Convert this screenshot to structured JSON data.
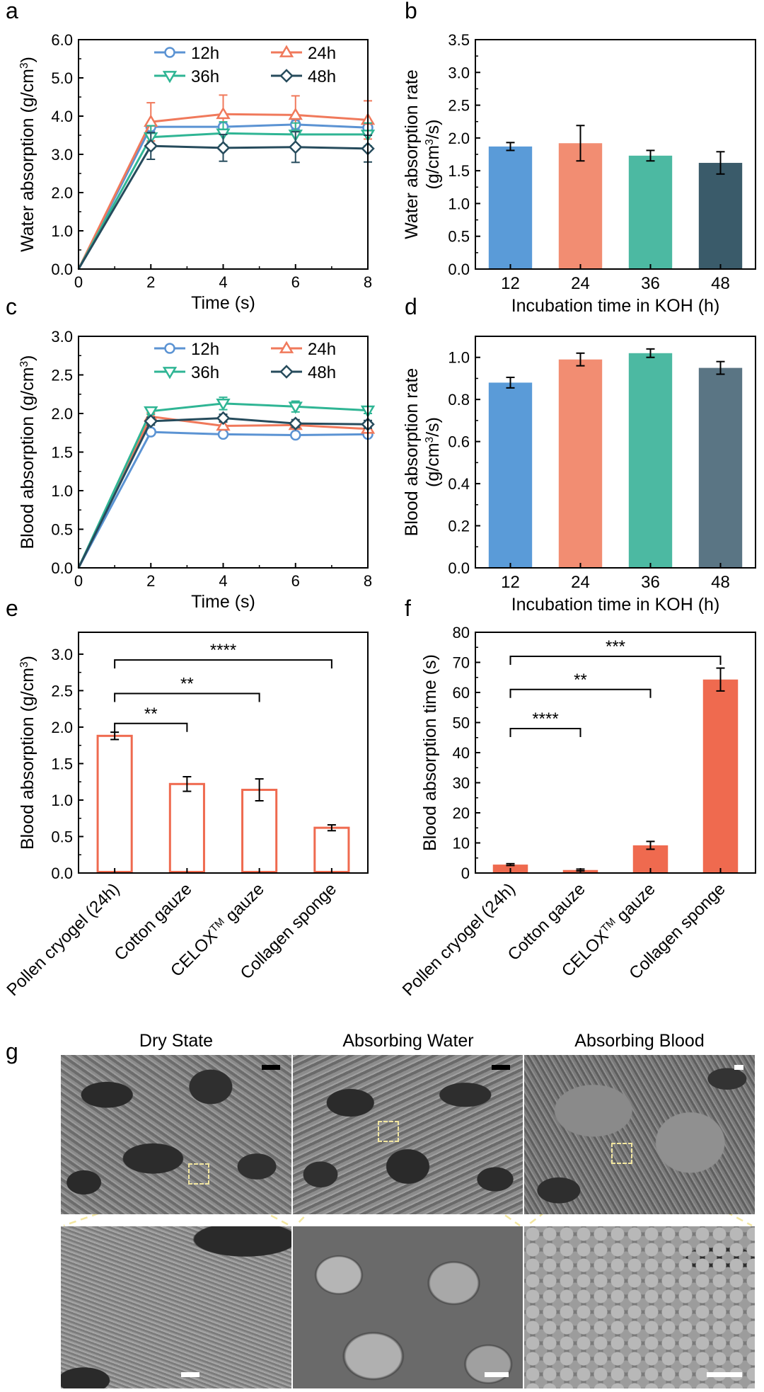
{
  "colors": {
    "c12": "#5b93d3",
    "c24": "#f0795b",
    "c36": "#2fb594",
    "c48": "#264b5c",
    "bar12": "#5a9bd8",
    "bar24": "#f28d72",
    "bar36": "#4cb9a2",
    "bar48": "#3a5b6a",
    "bar48d": "#5a7584",
    "orange": "#ef6a4f",
    "sem_dashed": "#f2e6a0"
  },
  "panel_letters": {
    "a": "a",
    "b": "b",
    "c": "c",
    "d": "d",
    "e": "e",
    "f": "f",
    "g": "g"
  },
  "chart_data": [
    {
      "id": "a",
      "type": "line",
      "xlabel": "Time (s)",
      "ylabel": "Water absorption (g/cm³)",
      "ylabel_pre": "Water absorption (g/cm",
      "ylabel_sup": "3",
      "ylabel_post": ")",
      "xlim": [
        0,
        8
      ],
      "ylim": [
        0,
        6
      ],
      "xticks": [
        "0",
        "2",
        "4",
        "6",
        "8"
      ],
      "yticks": [
        "0.0",
        "1.0",
        "2.0",
        "3.0",
        "4.0",
        "5.0",
        "6.0"
      ],
      "legend": "top-right",
      "x": [
        0,
        2,
        4,
        6,
        8
      ],
      "series": [
        {
          "name": "12h",
          "marker": "circle",
          "values": [
            0,
            3.72,
            3.72,
            3.78,
            3.7
          ],
          "err": [
            0,
            0.12,
            0.12,
            0.12,
            0.12
          ]
        },
        {
          "name": "24h",
          "marker": "triangle-up",
          "values": [
            0,
            3.85,
            4.05,
            4.03,
            3.9
          ],
          "err": [
            0,
            0.5,
            0.5,
            0.5,
            0.5
          ]
        },
        {
          "name": "36h",
          "marker": "triangle-down",
          "values": [
            0,
            3.45,
            3.55,
            3.52,
            3.52
          ],
          "err": [
            0,
            0.3,
            0.3,
            0.3,
            0.3
          ]
        },
        {
          "name": "48h",
          "marker": "diamond",
          "values": [
            0,
            3.22,
            3.17,
            3.19,
            3.15
          ],
          "err": [
            0,
            0.35,
            0.35,
            0.4,
            0.35
          ]
        }
      ]
    },
    {
      "id": "b",
      "type": "bar",
      "xlabel": "Incubation time in KOH (h)",
      "ylabel_line1": "Water absorption rate",
      "ylabel_line2_pre": "(g/cm",
      "ylabel_line2_sup": "3",
      "ylabel_line2_post": "/s)",
      "categories": [
        "12",
        "24",
        "36",
        "48"
      ],
      "values": [
        1.87,
        1.92,
        1.73,
        1.62
      ],
      "err": [
        0.06,
        0.27,
        0.08,
        0.17
      ],
      "ylim": [
        0,
        3.5
      ],
      "yticks": [
        "0.0",
        "0.5",
        "1.0",
        "1.5",
        "2.0",
        "2.5",
        "3.0",
        "3.5"
      ]
    },
    {
      "id": "c",
      "type": "line",
      "xlabel": "Time (s)",
      "ylabel_pre": "Blood absorption (g/cm",
      "ylabel_sup": "3",
      "ylabel_post": ")",
      "xlim": [
        0,
        8
      ],
      "ylim": [
        0,
        3
      ],
      "xticks": [
        "0",
        "2",
        "4",
        "6",
        "8"
      ],
      "yticks": [
        "0.0",
        "0.5",
        "1.0",
        "1.5",
        "2.0",
        "2.5",
        "3.0"
      ],
      "legend": "top-right",
      "x": [
        0,
        2,
        4,
        6,
        8
      ],
      "series": [
        {
          "name": "12h",
          "marker": "circle",
          "values": [
            0,
            1.76,
            1.73,
            1.72,
            1.73
          ],
          "err": [
            0,
            0.03,
            0.03,
            0.03,
            0.03
          ]
        },
        {
          "name": "24h",
          "marker": "triangle-up",
          "values": [
            0,
            1.96,
            1.84,
            1.85,
            1.8
          ],
          "err": [
            0,
            0.05,
            0.05,
            0.05,
            0.05
          ]
        },
        {
          "name": "36h",
          "marker": "triangle-down",
          "values": [
            0,
            2.03,
            2.13,
            2.09,
            2.04
          ],
          "err": [
            0,
            0.04,
            0.08,
            0.07,
            0.04
          ]
        },
        {
          "name": "48h",
          "marker": "diamond",
          "values": [
            0,
            1.9,
            1.94,
            1.87,
            1.86
          ],
          "err": [
            0,
            0.05,
            0.05,
            0.05,
            0.05
          ]
        }
      ]
    },
    {
      "id": "d",
      "type": "bar",
      "xlabel": "Incubation time in KOH (h)",
      "ylabel_line1": "Blood absorption rate",
      "ylabel_line2_pre": "(g/cm",
      "ylabel_line2_sup": "3",
      "ylabel_line2_post": "/s)",
      "categories": [
        "12",
        "24",
        "36",
        "48"
      ],
      "values": [
        0.88,
        0.99,
        1.02,
        0.95
      ],
      "err": [
        0.025,
        0.03,
        0.02,
        0.03
      ],
      "ylim": [
        0,
        1.1
      ],
      "yticks": [
        "0.0",
        "0.2",
        "0.4",
        "0.6",
        "0.8",
        "1.0"
      ]
    },
    {
      "id": "e",
      "type": "bar",
      "style": "hollow",
      "ylabel_pre": "Blood absorption (g/cm",
      "ylabel_sup": "3",
      "ylabel_post": ")",
      "categories": [
        "Pollen cryogel (24h)",
        "Cotton gauze",
        "CELOX™ gauze",
        "Collagen sponge"
      ],
      "values": [
        1.88,
        1.22,
        1.14,
        0.62
      ],
      "err": [
        0.05,
        0.1,
        0.15,
        0.04
      ],
      "ylim": [
        0,
        3.3
      ],
      "yticks": [
        "0.0",
        "0.5",
        "1.0",
        "1.5",
        "2.0",
        "2.5",
        "3.0"
      ],
      "annotations": [
        {
          "from": 0,
          "to": 1,
          "y": 2.05,
          "label": "**"
        },
        {
          "from": 0,
          "to": 2,
          "y": 2.46,
          "label": "**"
        },
        {
          "from": 0,
          "to": 3,
          "y": 2.92,
          "label": "****"
        }
      ]
    },
    {
      "id": "f",
      "type": "bar",
      "style": "filled",
      "ylabel": "Blood absorption time (s)",
      "categories": [
        "Pollen cryogel (24h)",
        "Cotton gauze",
        "CELOX™ gauze",
        "Collagen sponge"
      ],
      "values": [
        2.8,
        1.0,
        9.2,
        64.3
      ],
      "err": [
        0.3,
        0.3,
        1.3,
        3.8
      ],
      "ylim": [
        0,
        80
      ],
      "yticks": [
        "0",
        "10",
        "20",
        "30",
        "40",
        "50",
        "60",
        "70",
        "80"
      ],
      "annotations": [
        {
          "from": 0,
          "to": 1,
          "y": 48,
          "label": "****"
        },
        {
          "from": 0,
          "to": 2,
          "y": 61,
          "label": "**"
        },
        {
          "from": 0,
          "to": 3,
          "y": 72,
          "label": "***"
        }
      ]
    }
  ],
  "category_labels": {
    "pollen": "Pollen cryogel (24h)",
    "cotton": "Cotton gauze",
    "celox_pre": "CELOX",
    "celox_sup": "TM",
    "celox_post": " gauze",
    "collagen": "Collagen sponge"
  },
  "panel_g": {
    "titles": [
      "Dry State",
      "Absorbing Water",
      "Absorbing Blood"
    ]
  }
}
